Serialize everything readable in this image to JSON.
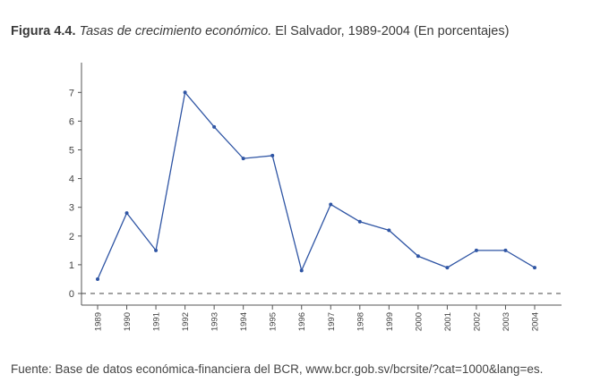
{
  "caption": {
    "figure_label": "Figura 4.4.",
    "title": "Tasas de crecimiento económico.",
    "place_years": "El Salvador, 1989-2004",
    "units": "(En porcentajes)"
  },
  "source": "Fuente: Base de datos económica-financiera del BCR, www.bcr.gob.sv/bcrsite/?cat=1000&lang=es.",
  "colors": {
    "line": "#2f55a4",
    "axis": "#555555",
    "zero_line": "#444444"
  },
  "chart_data": {
    "type": "line",
    "title": "Tasas de crecimiento económico. El Salvador, 1989-2004 (En porcentajes)",
    "xlabel": "",
    "ylabel": "",
    "ylim": [
      -0.4,
      8.0
    ],
    "yticks": [
      0,
      1,
      2,
      3,
      4,
      5,
      6,
      7
    ],
    "grid": false,
    "zero_reference_line": "dashed",
    "categories": [
      "1989",
      "1990",
      "1991",
      "1992",
      "1993",
      "1994",
      "1995",
      "1996",
      "1997",
      "1998",
      "1999",
      "2000",
      "2001",
      "2002",
      "2003",
      "2004"
    ],
    "series": [
      {
        "values": [
          0.5,
          2.8,
          1.5,
          7.0,
          5.8,
          4.7,
          4.8,
          0.8,
          3.1,
          2.5,
          2.2,
          1.3,
          0.9,
          1.5,
          1.5,
          0.9
        ]
      }
    ]
  }
}
